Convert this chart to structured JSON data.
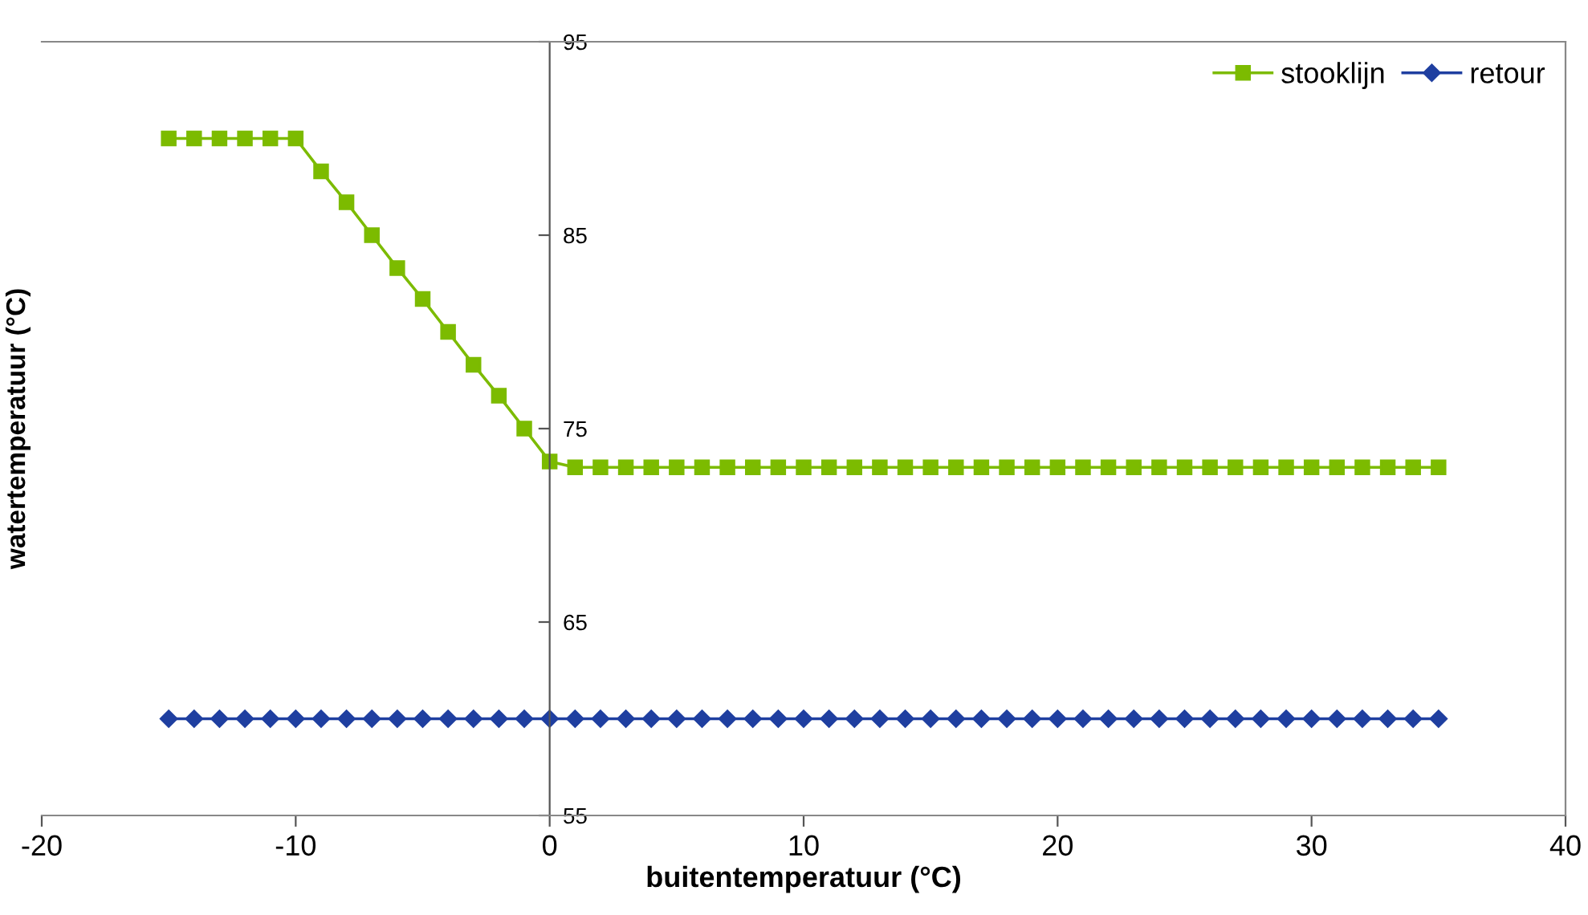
{
  "chart_data": {
    "type": "line",
    "xlabel": "buitentemperatuur (°C)",
    "ylabel": "watertemperatuur (°C)",
    "xlim": [
      -20,
      40
    ],
    "xticks": [
      -20,
      -10,
      0,
      10,
      20,
      30,
      40
    ],
    "ylim": [
      55,
      95
    ],
    "yticks": [
      55,
      65,
      75,
      85,
      95
    ],
    "x": [
      -15,
      -14,
      -13,
      -12,
      -11,
      -10,
      -9,
      -8,
      -7,
      -6,
      -5,
      -4,
      -3,
      -2,
      -1,
      0,
      1,
      2,
      3,
      4,
      5,
      6,
      7,
      8,
      9,
      10,
      11,
      12,
      13,
      14,
      15,
      16,
      17,
      18,
      19,
      20,
      21,
      22,
      23,
      24,
      25,
      26,
      27,
      28,
      29,
      30,
      31,
      32,
      33,
      34,
      35
    ],
    "series": [
      {
        "name": "stooklijn",
        "color": "#7cbb00",
        "marker": "square",
        "values": [
          90,
          90,
          90,
          90,
          90,
          90,
          88.3,
          86.7,
          85,
          83.3,
          81.7,
          80,
          78.3,
          76.7,
          75,
          73.3,
          73,
          73,
          73,
          73,
          73,
          73,
          73,
          73,
          73,
          73,
          73,
          73,
          73,
          73,
          73,
          73,
          73,
          73,
          73,
          73,
          73,
          73,
          73,
          73,
          73,
          73,
          73,
          73,
          73,
          73,
          73,
          73,
          73,
          73,
          73
        ]
      },
      {
        "name": "retour",
        "color": "#1f3fa0",
        "marker": "diamond",
        "values": [
          60,
          60,
          60,
          60,
          60,
          60,
          60,
          60,
          60,
          60,
          60,
          60,
          60,
          60,
          60,
          60,
          60,
          60,
          60,
          60,
          60,
          60,
          60,
          60,
          60,
          60,
          60,
          60,
          60,
          60,
          60,
          60,
          60,
          60,
          60,
          60,
          60,
          60,
          60,
          60,
          60,
          60,
          60,
          60,
          60,
          60,
          60,
          60,
          60,
          60,
          60
        ]
      }
    ],
    "legend": "top right",
    "grid": false
  }
}
